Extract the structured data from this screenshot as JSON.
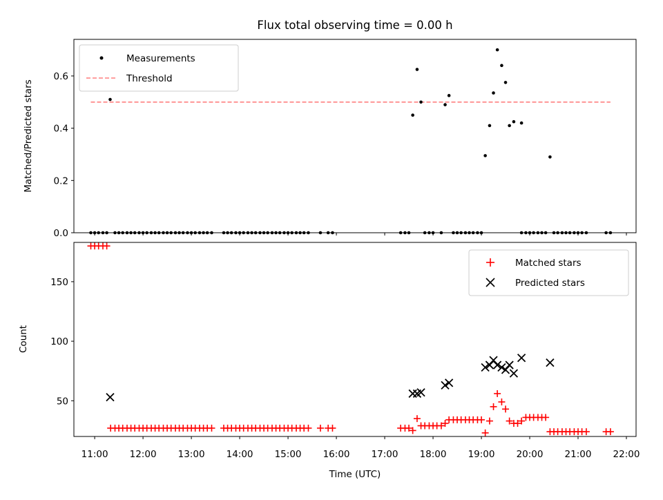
{
  "title": "Flux total observing time = 0.00 h",
  "chart_data": [
    {
      "type": "scatter",
      "ylabel": "Matched/Predicted stars",
      "xlabel": "",
      "ylim": [
        0.0,
        0.74
      ],
      "xlim": [
        10.57,
        22.2
      ],
      "yticks": [
        0.0,
        0.2,
        0.4,
        0.6
      ],
      "ytick_labels": [
        "0.0",
        "0.2",
        "0.4",
        "0.6"
      ],
      "grid": false,
      "legend_position": "top-left",
      "legend": [
        {
          "label": "Measurements",
          "marker": "dot",
          "color": "#000000"
        },
        {
          "label": "Threshold",
          "marker": "dashed-line",
          "color": "#ff7f7f"
        }
      ],
      "threshold": {
        "value": 0.5,
        "x_range": [
          10.92,
          21.67
        ],
        "color": "#ff7f7f"
      },
      "series": [
        {
          "name": "Measurements",
          "color": "#000000",
          "x": [
            11.32,
            17.58,
            17.67,
            17.75,
            18.25,
            18.33,
            19.08,
            19.17,
            19.25,
            19.33,
            19.42,
            19.5,
            19.58,
            19.67,
            19.83,
            20.42
          ],
          "y": [
            0.51,
            0.45,
            0.625,
            0.5,
            0.49,
            0.525,
            0.295,
            0.41,
            0.535,
            0.7,
            0.64,
            0.575,
            0.41,
            0.425,
            0.42,
            0.29
          ]
        },
        {
          "name": "Measurements",
          "color": "#000000",
          "x_zero": [
            10.92,
            11.0,
            11.08,
            11.17,
            11.25,
            11.42,
            11.5,
            11.58,
            11.67,
            11.75,
            11.83,
            11.92,
            12.0,
            12.08,
            12.17,
            12.25,
            12.33,
            12.42,
            12.5,
            12.58,
            12.67,
            12.75,
            12.83,
            12.92,
            13.0,
            13.08,
            13.17,
            13.25,
            13.33,
            13.42,
            13.67,
            13.75,
            13.83,
            13.92,
            14.0,
            14.08,
            14.17,
            14.25,
            14.33,
            14.42,
            14.5,
            14.58,
            14.67,
            14.75,
            14.83,
            14.92,
            15.0,
            15.08,
            15.17,
            15.25,
            15.33,
            15.42,
            15.67,
            15.83,
            15.92,
            17.33,
            17.42,
            17.5,
            17.83,
            17.92,
            18.0,
            18.17,
            18.42,
            18.5,
            18.58,
            18.67,
            18.75,
            18.83,
            18.92,
            19.0,
            19.83,
            19.92,
            20.0,
            20.08,
            20.17,
            20.25,
            20.33,
            20.5,
            20.58,
            20.67,
            20.75,
            20.83,
            20.92,
            21.0,
            21.08,
            21.17,
            21.58,
            21.67
          ]
        }
      ]
    },
    {
      "type": "scatter",
      "ylabel": "Count",
      "xlabel": "Time (UTC)",
      "ylim": [
        20,
        183
      ],
      "xlim": [
        10.57,
        22.2
      ],
      "yticks": [
        50,
        100,
        150
      ],
      "ytick_labels": [
        "50",
        "100",
        "150"
      ],
      "xticks": [
        11,
        12,
        13,
        14,
        15,
        16,
        17,
        18,
        19,
        20,
        21,
        22
      ],
      "xtick_labels": [
        "11:00",
        "12:00",
        "13:00",
        "14:00",
        "15:00",
        "16:00",
        "17:00",
        "18:00",
        "19:00",
        "20:00",
        "21:00",
        "22:00"
      ],
      "grid": false,
      "legend_position": "top-right",
      "series": [
        {
          "name": "Matched stars",
          "marker": "plus",
          "color": "#ff0000",
          "x": [
            10.92,
            11.0,
            11.08,
            11.17,
            11.25,
            11.33,
            11.42,
            11.5,
            11.58,
            11.67,
            11.75,
            11.83,
            11.92,
            12.0,
            12.08,
            12.17,
            12.25,
            12.33,
            12.42,
            12.5,
            12.58,
            12.67,
            12.75,
            12.83,
            12.92,
            13.0,
            13.08,
            13.17,
            13.25,
            13.33,
            13.42,
            13.67,
            13.75,
            13.83,
            13.92,
            14.0,
            14.08,
            14.17,
            14.25,
            14.33,
            14.42,
            14.5,
            14.58,
            14.67,
            14.75,
            14.83,
            14.92,
            15.0,
            15.08,
            15.17,
            15.25,
            15.33,
            15.42,
            15.67,
            15.83,
            15.92,
            17.33,
            17.42,
            17.5,
            17.58,
            17.67,
            17.75,
            17.83,
            17.92,
            18.0,
            18.08,
            18.17,
            18.25,
            18.33,
            18.42,
            18.5,
            18.58,
            18.67,
            18.75,
            18.83,
            18.92,
            19.0,
            19.08,
            19.17,
            19.25,
            19.33,
            19.42,
            19.5,
            19.58,
            19.67,
            19.75,
            19.83,
            19.92,
            20.0,
            20.08,
            20.17,
            20.25,
            20.33,
            20.42,
            20.5,
            20.58,
            20.67,
            20.75,
            20.83,
            20.92,
            21.0,
            21.08,
            21.17,
            21.58,
            21.67
          ],
          "y": [
            180,
            180,
            180,
            180,
            180,
            27,
            27,
            27,
            27,
            27,
            27,
            27,
            27,
            27,
            27,
            27,
            27,
            27,
            27,
            27,
            27,
            27,
            27,
            27,
            27,
            27,
            27,
            27,
            27,
            27,
            27,
            27,
            27,
            27,
            27,
            27,
            27,
            27,
            27,
            27,
            27,
            27,
            27,
            27,
            27,
            27,
            27,
            27,
            27,
            27,
            27,
            27,
            27,
            27,
            27,
            27,
            27,
            27,
            27,
            25,
            35,
            29,
            29,
            29,
            29,
            29,
            29,
            31,
            34,
            34,
            34,
            34,
            34,
            34,
            34,
            34,
            34,
            23,
            33,
            45,
            56,
            49,
            43,
            33,
            31,
            31,
            33,
            36,
            36,
            36,
            36,
            36,
            36,
            24,
            24,
            24,
            24,
            24,
            24,
            24,
            24,
            24,
            24,
            24,
            24
          ]
        },
        {
          "name": "Predicted stars",
          "marker": "x",
          "color": "#000000",
          "x": [
            11.32,
            17.58,
            17.67,
            17.75,
            18.25,
            18.33,
            19.08,
            19.17,
            19.25,
            19.33,
            19.42,
            19.5,
            19.58,
            19.67,
            19.83,
            20.42
          ],
          "y": [
            53,
            56,
            56,
            57,
            63,
            65,
            78,
            80,
            84,
            80,
            78,
            76,
            80,
            73,
            86,
            82
          ]
        }
      ]
    }
  ]
}
